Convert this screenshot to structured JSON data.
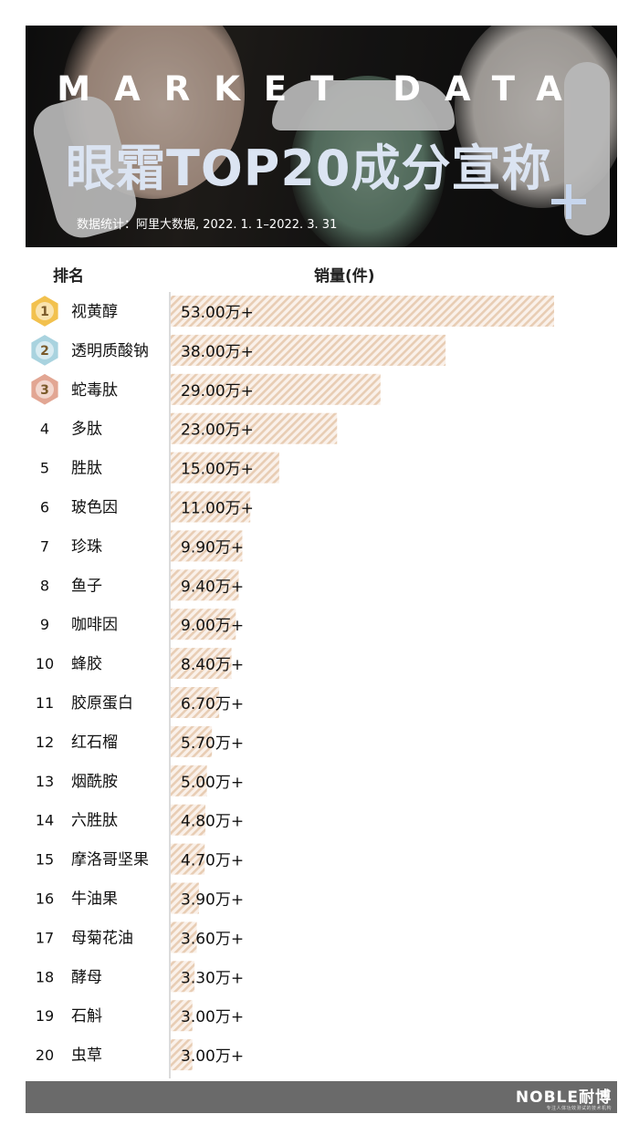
{
  "header": {
    "subtitle": "MARKET DATA",
    "title": "眼霜TOP20成分宣称",
    "source": "数据统计：阿里大数据, 2022. 1. 1–2022. 3. 31"
  },
  "columns": {
    "rank": "排名",
    "sales": "销量(件)"
  },
  "colors": {
    "bar_stripe": "#e8cdb4",
    "bar_bg": "#faf1ea",
    "axis": "#cfcfcf",
    "gold": "#f2c14e",
    "silver": "#a9d3df",
    "bronze": "#e2a693",
    "footer": "#6a6a6a"
  },
  "medal_icons": [
    "gold-medal-icon",
    "silver-medal-icon",
    "bronze-medal-icon"
  ],
  "chart_data": {
    "type": "bar",
    "orientation": "horizontal",
    "ranks": [
      "1",
      "2",
      "3",
      "4",
      "5",
      "6",
      "7",
      "8",
      "9",
      "10",
      "11",
      "12",
      "13",
      "14",
      "15",
      "16",
      "17",
      "18",
      "19",
      "20"
    ],
    "categories": [
      "视黄醇",
      "透明质酸钠",
      "蛇毒肽",
      "多肽",
      "胜肽",
      "玻色因",
      "珍珠",
      "鱼子",
      "咖啡因",
      "蜂胶",
      "胶原蛋白",
      "红石榴",
      "烟酰胺",
      "六胜肽",
      "摩洛哥坚果",
      "牛油果",
      "母菊花油",
      "酵母",
      "石斛",
      "虫草"
    ],
    "values": [
      53.0,
      38.0,
      29.0,
      23.0,
      15.0,
      11.0,
      9.9,
      9.4,
      9.0,
      8.4,
      6.7,
      5.7,
      5.0,
      4.8,
      4.7,
      3.9,
      3.6,
      3.3,
      3.0,
      3.0
    ],
    "value_labels": [
      "53.00万+",
      "38.00万+",
      "29.00万+",
      "23.00万+",
      "15.00万+",
      "11.00万+",
      "9.90万+",
      "9.40万+",
      "9.00万+",
      "8.40万+",
      "6.70万+",
      "5.70万+",
      "5.00万+",
      "4.80万+",
      "4.70万+",
      "3.90万+",
      "3.60万+",
      "3.30万+",
      "3.00万+",
      "3.00万+"
    ],
    "unit": "万"
  },
  "footer": {
    "logo": "NOBLE耐博",
    "tagline": "专注人体功效测试的技术机构"
  }
}
